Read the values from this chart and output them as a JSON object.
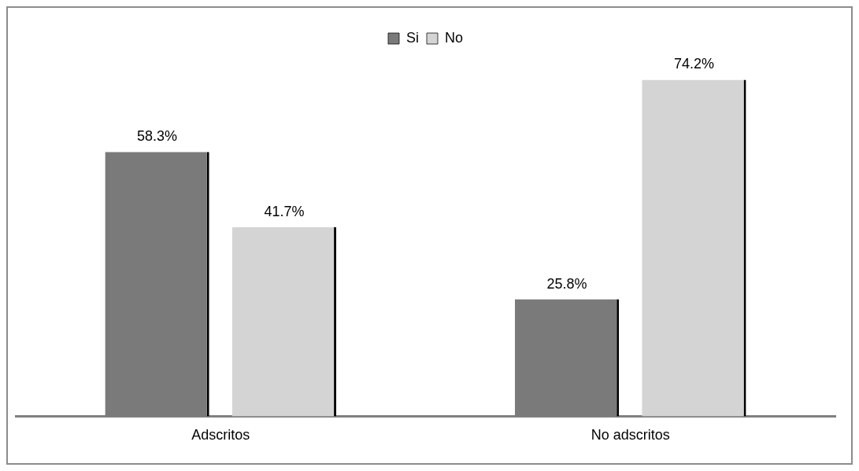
{
  "chart_data": {
    "type": "bar",
    "categories": [
      "Adscritos",
      "No adscritos"
    ],
    "series": [
      {
        "name": "Si",
        "color": "#7a7a7a",
        "values": [
          58.3,
          25.8
        ],
        "value_labels": [
          "58.3%",
          "25.8%"
        ]
      },
      {
        "name": "No",
        "color": "#d4d4d4",
        "values": [
          41.7,
          74.2
        ],
        "value_labels": [
          "41.7%",
          "74.2%"
        ]
      }
    ],
    "legend": "top",
    "grid": false
  }
}
